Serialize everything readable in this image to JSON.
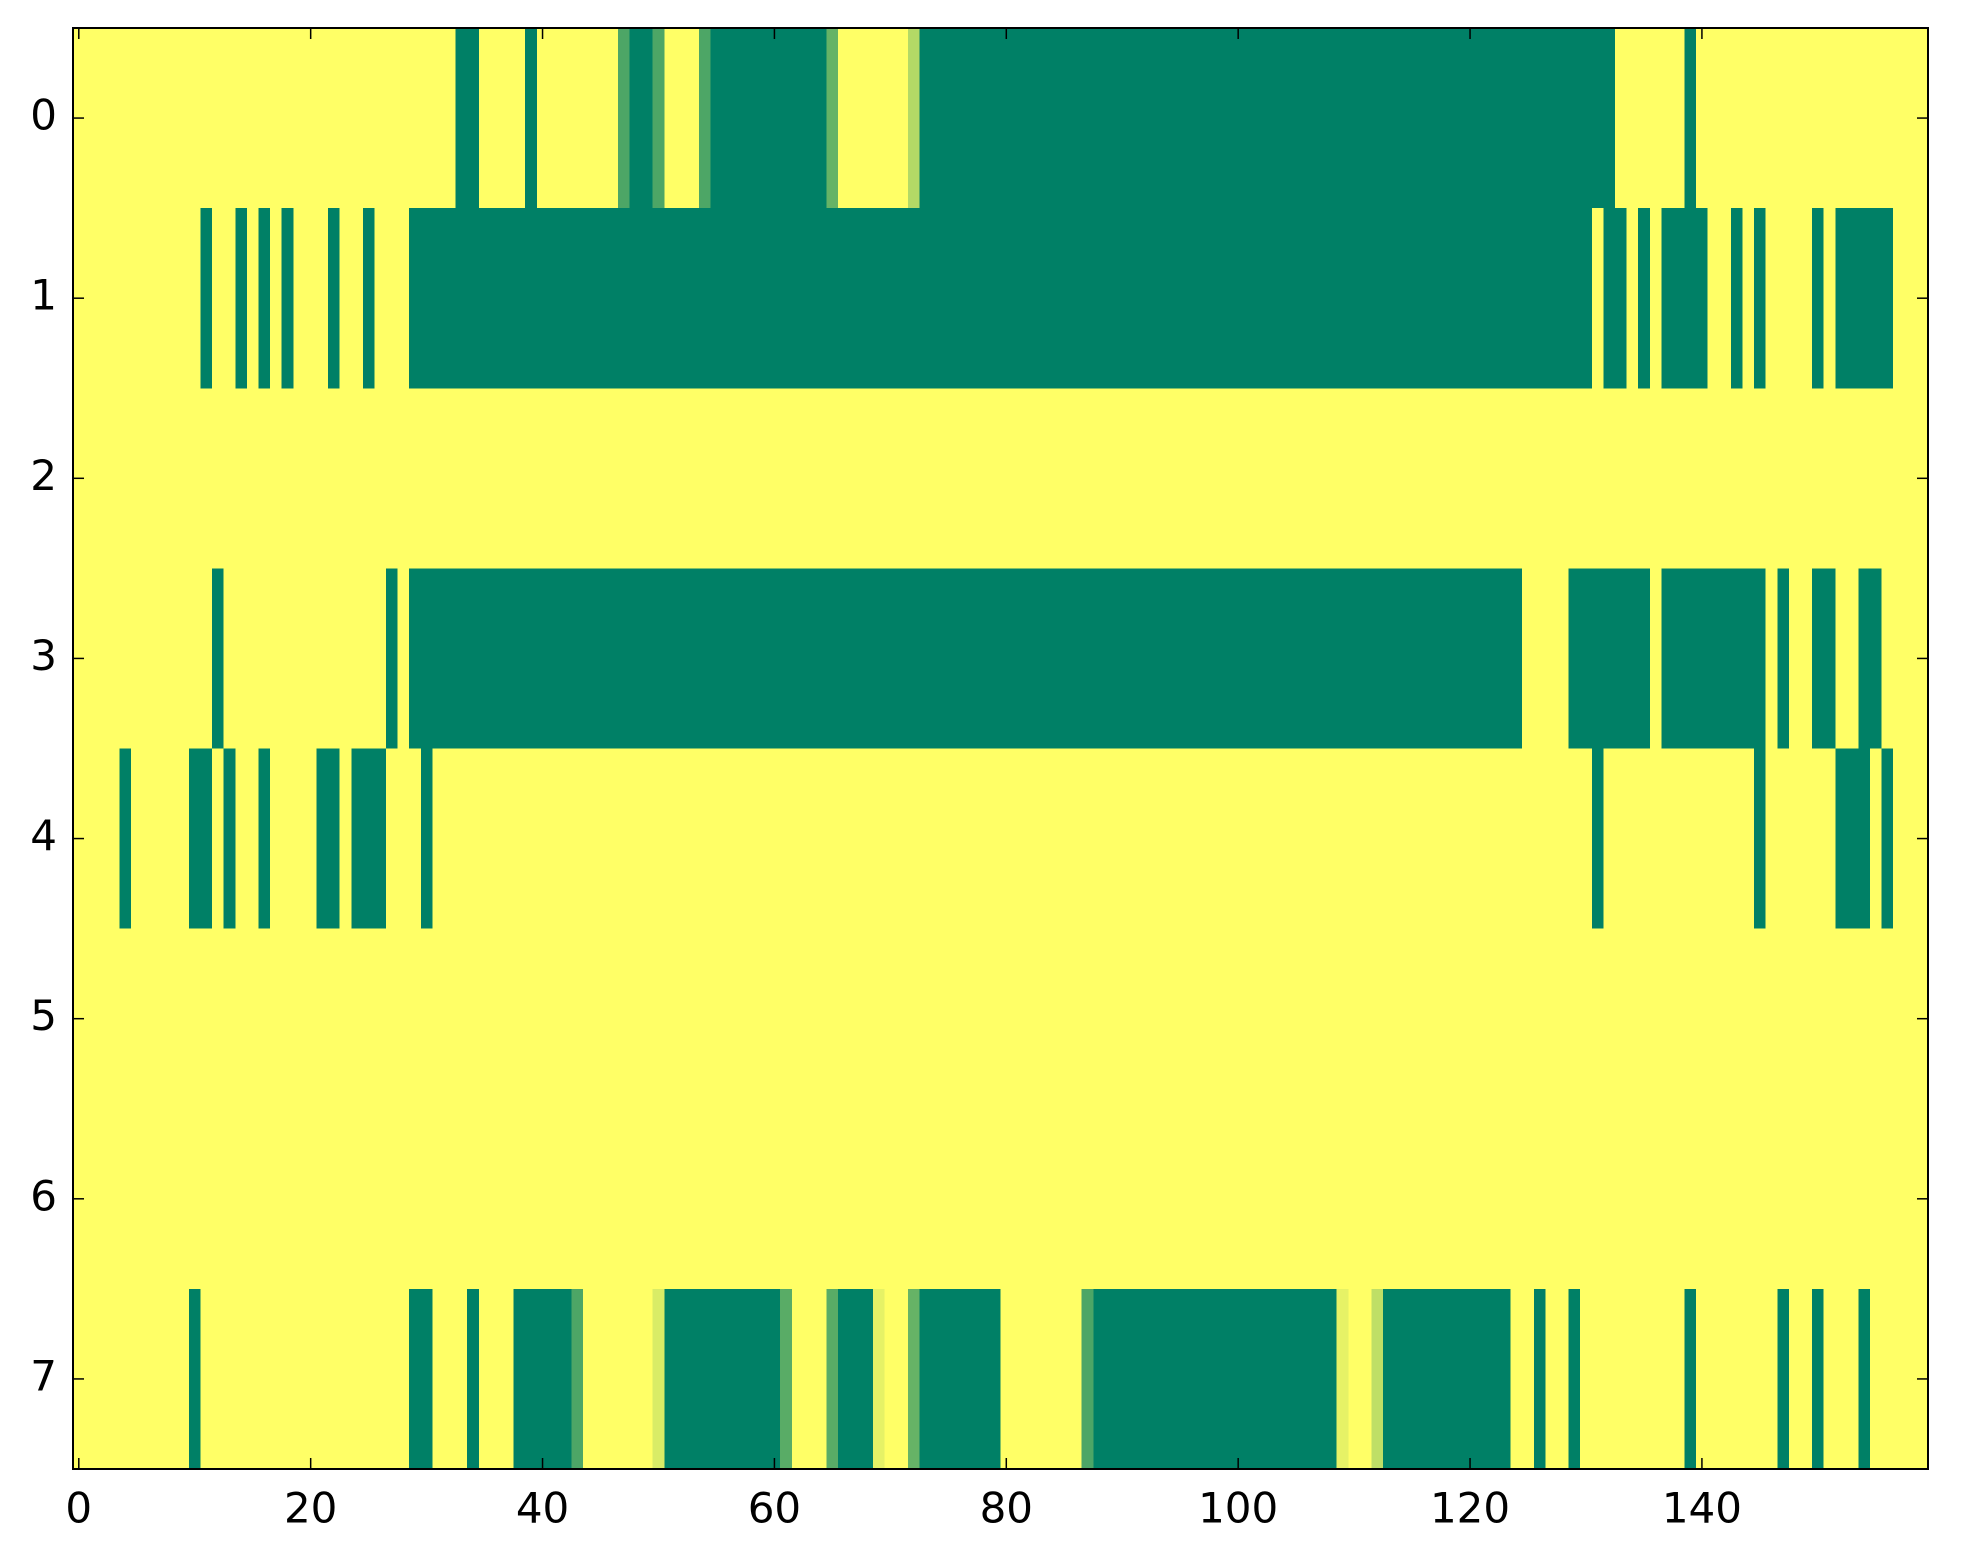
{
  "chart_data": {
    "type": "heatmap",
    "colormap": [
      "#008066",
      "#ffff66"
    ],
    "xlim": [
      -0.5,
      159.5
    ],
    "ylim": [
      7.5,
      -0.5
    ],
    "xticks": [
      0,
      20,
      40,
      60,
      80,
      100,
      120,
      140
    ],
    "yticks": [
      0,
      1,
      2,
      3,
      4,
      5,
      6,
      7
    ],
    "z": [
      [
        1,
        1,
        1,
        1,
        1,
        1,
        1,
        1,
        1,
        1,
        1,
        1,
        1,
        1,
        1,
        1,
        1,
        1,
        1,
        1,
        1,
        1,
        1,
        1,
        1,
        1,
        1,
        1,
        1,
        1,
        1,
        1,
        1,
        0,
        0,
        1,
        1,
        1,
        1,
        0,
        1,
        1,
        1,
        1,
        1,
        1,
        1,
        0.3,
        0,
        0,
        0.3,
        1,
        1,
        1,
        0.3,
        0,
        0,
        0,
        0,
        0,
        0,
        0,
        0,
        0,
        0,
        0.4,
        1,
        1,
        1,
        1,
        1,
        1,
        0.7,
        0,
        0,
        0,
        0,
        0,
        0,
        0,
        0,
        0,
        0,
        0,
        0,
        0,
        0,
        0,
        0,
        0,
        0,
        0,
        0,
        0,
        0,
        0,
        0,
        0,
        0,
        0,
        0,
        0,
        0,
        0,
        0,
        0,
        0,
        0,
        0,
        0,
        0,
        0,
        0,
        0,
        0,
        0,
        0,
        0,
        0,
        0,
        0,
        0,
        0,
        0,
        0,
        0,
        0,
        0,
        0,
        0,
        0,
        0,
        0,
        1,
        1,
        1,
        1,
        1,
        1,
        0,
        1,
        1,
        1,
        1,
        1,
        1,
        1,
        1,
        1,
        1,
        1,
        1,
        1,
        1,
        1,
        1,
        1,
        1,
        1,
        1
      ],
      [
        1,
        1,
        1,
        1,
        1,
        1,
        1,
        1,
        1,
        1,
        1,
        0,
        1,
        1,
        0,
        1,
        0,
        1,
        0,
        1,
        1,
        1,
        0,
        1,
        1,
        0,
        1,
        1,
        1,
        0,
        0,
        0,
        0,
        0,
        0,
        0,
        0,
        0,
        0,
        0,
        0,
        0,
        0,
        0,
        0,
        0,
        0,
        0,
        0,
        0,
        0,
        0,
        0,
        0,
        0,
        0,
        0,
        0,
        0,
        0,
        0,
        0,
        0,
        0,
        0,
        0,
        0,
        0,
        0,
        0,
        0,
        0,
        0,
        0,
        0,
        0,
        0,
        0,
        0,
        0,
        0,
        0,
        0,
        0,
        0,
        0,
        0,
        0,
        0,
        0,
        0,
        0,
        0,
        0,
        0,
        0,
        0,
        0,
        0,
        0,
        0,
        0,
        0,
        0,
        0,
        0,
        0,
        0,
        0,
        0,
        0,
        0,
        0,
        0,
        0,
        0,
        0,
        0,
        0,
        0,
        0,
        0,
        0,
        0,
        0,
        0,
        0,
        0,
        0,
        0,
        0,
        1,
        0,
        0,
        1,
        0,
        1,
        0,
        0,
        0,
        0,
        1,
        1,
        0,
        1,
        0,
        1,
        1,
        1,
        1,
        0,
        1,
        0,
        0,
        0,
        0,
        0,
        1,
        1,
        1
      ],
      [
        1,
        1,
        1,
        1,
        1,
        1,
        1,
        1,
        1,
        1,
        1,
        1,
        1,
        1,
        1,
        1,
        1,
        1,
        1,
        1,
        1,
        1,
        1,
        1,
        1,
        1,
        1,
        1,
        1,
        1,
        1,
        1,
        1,
        1,
        1,
        1,
        1,
        1,
        1,
        1,
        1,
        1,
        1,
        1,
        1,
        1,
        1,
        1,
        1,
        1,
        1,
        1,
        1,
        1,
        1,
        1,
        1,
        1,
        1,
        1,
        1,
        1,
        1,
        1,
        1,
        1,
        1,
        1,
        1,
        1,
        1,
        1,
        1,
        1,
        1,
        1,
        1,
        1,
        1,
        1,
        1,
        1,
        1,
        1,
        1,
        1,
        1,
        1,
        1,
        1,
        1,
        1,
        1,
        1,
        1,
        1,
        1,
        1,
        1,
        1,
        1,
        1,
        1,
        1,
        1,
        1,
        1,
        1,
        1,
        1,
        1,
        1,
        1,
        1,
        1,
        1,
        1,
        1,
        1,
        1,
        1,
        1,
        1,
        1,
        1,
        1,
        1,
        1,
        1,
        1,
        1,
        1,
        1,
        1,
        1,
        1,
        1,
        1,
        1,
        1,
        1,
        1,
        1,
        1,
        1,
        1,
        1,
        1,
        1,
        1,
        1,
        1,
        1,
        1,
        1,
        1,
        1,
        1,
        1,
        1
      ],
      [
        1,
        1,
        1,
        1,
        1,
        1,
        1,
        1,
        1,
        1,
        1,
        1,
        0,
        1,
        1,
        1,
        1,
        1,
        1,
        1,
        1,
        1,
        1,
        1,
        1,
        1,
        1,
        0,
        1,
        0,
        0,
        0,
        0,
        0,
        0,
        0,
        0,
        0,
        0,
        0,
        0,
        0,
        0,
        0,
        0,
        0,
        0,
        0,
        0,
        0,
        0,
        0,
        0,
        0,
        0,
        0,
        0,
        0,
        0,
        0,
        0,
        0,
        0,
        0,
        0,
        0,
        0,
        0,
        0,
        0,
        0,
        0,
        0,
        0,
        0,
        0,
        0,
        0,
        0,
        0,
        0,
        0,
        0,
        0,
        0,
        0,
        0,
        0,
        0,
        0,
        0,
        0,
        0,
        0,
        0,
        0,
        0,
        0,
        0,
        0,
        0,
        0,
        0,
        0,
        0,
        0,
        0,
        0,
        0,
        0,
        0,
        0,
        0,
        0,
        0,
        0,
        0,
        0,
        0,
        0,
        0,
        0,
        0,
        0,
        0,
        1,
        1,
        1,
        1,
        0,
        0,
        0,
        0,
        0,
        0,
        0,
        1,
        0,
        0,
        0,
        0,
        0,
        0,
        0,
        0,
        0,
        1,
        0,
        1,
        1,
        0,
        0,
        1,
        1,
        0,
        0,
        1,
        1,
        1,
        1
      ],
      [
        1,
        1,
        1,
        1,
        0,
        1,
        1,
        1,
        1,
        1,
        0,
        0,
        1,
        0,
        1,
        1,
        0,
        1,
        1,
        1,
        1,
        0,
        0,
        1,
        0,
        0,
        0,
        1,
        1,
        1,
        0,
        1,
        1,
        1,
        1,
        1,
        1,
        1,
        1,
        1,
        1,
        1,
        1,
        1,
        1,
        1,
        1,
        1,
        1,
        1,
        1,
        1,
        1,
        1,
        1,
        1,
        1,
        1,
        1,
        1,
        1,
        1,
        1,
        1,
        1,
        1,
        1,
        1,
        1,
        1,
        1,
        1,
        1,
        1,
        1,
        1,
        1,
        1,
        1,
        1,
        1,
        1,
        1,
        1,
        1,
        1,
        1,
        1,
        1,
        1,
        1,
        1,
        1,
        1,
        1,
        1,
        1,
        1,
        1,
        1,
        1,
        1,
        1,
        1,
        1,
        1,
        1,
        1,
        1,
        1,
        1,
        1,
        1,
        1,
        1,
        1,
        1,
        1,
        1,
        1,
        1,
        1,
        1,
        1,
        1,
        1,
        1,
        1,
        1,
        1,
        1,
        0,
        1,
        1,
        1,
        1,
        1,
        1,
        1,
        1,
        1,
        1,
        1,
        1,
        1,
        0,
        1,
        1,
        1,
        1,
        1,
        1,
        0,
        0,
        0,
        1,
        0,
        1,
        1,
        1
      ],
      [
        1,
        1,
        1,
        1,
        1,
        1,
        1,
        1,
        1,
        1,
        1,
        1,
        1,
        1,
        1,
        1,
        1,
        1,
        1,
        1,
        1,
        1,
        1,
        1,
        1,
        1,
        1,
        1,
        1,
        1,
        1,
        1,
        1,
        1,
        1,
        1,
        1,
        1,
        1,
        1,
        1,
        1,
        1,
        1,
        1,
        1,
        1,
        1,
        1,
        1,
        1,
        1,
        1,
        1,
        1,
        1,
        1,
        1,
        1,
        1,
        1,
        1,
        1,
        1,
        1,
        1,
        1,
        1,
        1,
        1,
        1,
        1,
        1,
        1,
        1,
        1,
        1,
        1,
        1,
        1,
        1,
        1,
        1,
        1,
        1,
        1,
        1,
        1,
        1,
        1,
        1,
        1,
        1,
        1,
        1,
        1,
        1,
        1,
        1,
        1,
        1,
        1,
        1,
        1,
        1,
        1,
        1,
        1,
        1,
        1,
        1,
        1,
        1,
        1,
        1,
        1,
        1,
        1,
        1,
        1,
        1,
        1,
        1,
        1,
        1,
        1,
        1,
        1,
        1,
        1,
        1,
        1,
        1,
        1,
        1,
        1,
        1,
        1,
        1,
        1,
        1,
        1,
        1,
        1,
        1,
        1,
        1,
        1,
        1,
        1,
        1,
        1,
        1,
        1,
        1,
        1,
        1,
        1,
        1,
        1
      ],
      [
        1,
        1,
        1,
        1,
        1,
        1,
        1,
        1,
        1,
        1,
        1,
        1,
        1,
        1,
        1,
        1,
        1,
        1,
        1,
        1,
        1,
        1,
        1,
        1,
        1,
        1,
        1,
        1,
        1,
        1,
        1,
        1,
        1,
        1,
        1,
        1,
        1,
        1,
        1,
        1,
        1,
        1,
        1,
        1,
        1,
        1,
        1,
        1,
        1,
        1,
        1,
        1,
        1,
        1,
        1,
        1,
        1,
        1,
        1,
        1,
        1,
        1,
        1,
        1,
        1,
        1,
        1,
        1,
        1,
        1,
        1,
        1,
        1,
        1,
        1,
        1,
        1,
        1,
        1,
        1,
        1,
        1,
        1,
        1,
        1,
        1,
        1,
        1,
        1,
        1,
        1,
        1,
        1,
        1,
        1,
        1,
        1,
        1,
        1,
        1,
        1,
        1,
        1,
        1,
        1,
        1,
        1,
        1,
        1,
        1,
        1,
        1,
        1,
        1,
        1,
        1,
        1,
        1,
        1,
        1,
        1,
        1,
        1,
        1,
        1,
        1,
        1,
        1,
        1,
        1,
        1,
        1,
        1,
        1,
        1,
        1,
        1,
        1,
        1,
        1,
        1,
        1,
        1,
        1,
        1,
        1,
        1,
        1,
        1,
        1,
        1,
        1,
        1,
        1,
        1,
        1,
        1,
        1,
        1,
        1
      ],
      [
        1,
        1,
        1,
        1,
        1,
        1,
        1,
        1,
        1,
        1,
        0,
        1,
        1,
        1,
        1,
        1,
        1,
        1,
        1,
        1,
        1,
        1,
        1,
        1,
        1,
        1,
        1,
        1,
        1,
        0,
        0,
        1,
        1,
        1,
        0,
        1,
        1,
        1,
        0,
        0,
        0,
        0,
        0,
        0.3,
        1,
        1,
        1,
        1,
        1,
        1,
        0.85,
        0,
        0,
        0,
        0,
        0,
        0,
        0,
        0,
        0,
        0,
        0.35,
        1,
        1,
        1,
        0.35,
        0,
        0,
        0,
        0.9,
        1,
        1,
        0.4,
        0,
        0,
        0,
        0,
        0,
        0,
        0,
        1,
        1,
        1,
        1,
        1,
        1,
        1,
        0.3,
        0,
        0,
        0,
        0,
        0,
        0,
        0,
        0,
        0,
        0,
        0,
        0,
        0,
        0,
        0,
        0,
        0,
        0,
        0,
        0,
        0,
        0.9,
        1,
        1,
        0.75,
        0,
        0,
        0,
        0,
        0,
        0,
        0,
        0,
        0,
        0,
        0,
        1,
        1,
        0,
        1,
        1,
        0,
        1,
        1,
        1,
        1,
        1,
        1,
        1,
        1,
        1,
        0,
        1,
        1,
        1,
        1,
        1,
        1,
        1,
        0,
        1,
        1,
        0,
        1,
        1,
        1,
        0,
        1,
        1,
        1,
        1,
        1
      ]
    ]
  }
}
